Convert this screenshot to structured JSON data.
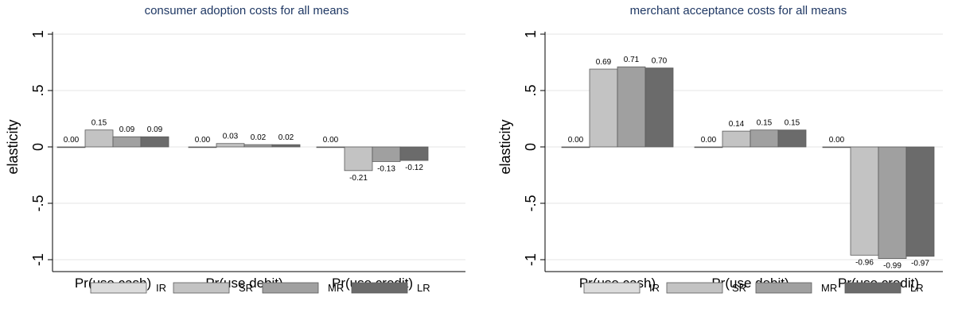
{
  "chart_data": [
    {
      "type": "bar",
      "title": "consumer adoption costs for all means",
      "xlabel": "",
      "ylabel": "elasticity",
      "ylim": [
        -1,
        1
      ],
      "yticks": [
        "-1",
        "-.5",
        "0",
        ".5",
        "1"
      ],
      "ytick_values": [
        -1,
        -0.5,
        0,
        0.5,
        1
      ],
      "categories": [
        "Pr(use cash)",
        "Pr(use debit)",
        "Pr(use credit)"
      ],
      "series": [
        {
          "name": "IR",
          "values": [
            0.0,
            0.0,
            0.0
          ],
          "labels": [
            "0.00",
            "0.00",
            "0.00"
          ]
        },
        {
          "name": "SR",
          "values": [
            0.15,
            0.03,
            -0.21
          ],
          "labels": [
            "0.15",
            "0.03",
            "-0.21"
          ]
        },
        {
          "name": "MR",
          "values": [
            0.09,
            0.02,
            -0.13
          ],
          "labels": [
            "0.09",
            "0.02",
            "-0.13"
          ]
        },
        {
          "name": "LR",
          "values": [
            0.09,
            0.02,
            -0.12
          ],
          "labels": [
            "0.09",
            "0.02",
            "-0.12"
          ]
        }
      ],
      "grid": true,
      "legend_position": "bottom"
    },
    {
      "type": "bar",
      "title": "merchant acceptance costs for all means",
      "xlabel": "",
      "ylabel": "elasticity",
      "ylim": [
        -1,
        1
      ],
      "yticks": [
        "-1",
        "-.5",
        "0",
        ".5",
        "1"
      ],
      "ytick_values": [
        -1,
        -0.5,
        0,
        0.5,
        1
      ],
      "categories": [
        "Pr(use cash)",
        "Pr(use debit)",
        "Pr(use credit)"
      ],
      "series": [
        {
          "name": "IR",
          "values": [
            0.0,
            0.0,
            0.0
          ],
          "labels": [
            "0.00",
            "0.00",
            "0.00"
          ]
        },
        {
          "name": "SR",
          "values": [
            0.69,
            0.14,
            -0.96
          ],
          "labels": [
            "0.69",
            "0.14",
            "-0.96"
          ]
        },
        {
          "name": "MR",
          "values": [
            0.71,
            0.15,
            -0.99
          ],
          "labels": [
            "0.71",
            "0.15",
            "-0.99"
          ]
        },
        {
          "name": "LR",
          "values": [
            0.7,
            0.15,
            -0.97
          ],
          "labels": [
            "0.70",
            "0.15",
            "-0.97"
          ]
        }
      ],
      "grid": true,
      "legend_position": "bottom"
    }
  ],
  "colors": {
    "IR": "#dcdcdc",
    "SR": "#c3c3c3",
    "MR": "#a0a0a0",
    "LR": "#6b6b6b",
    "title": "#1f3864"
  }
}
